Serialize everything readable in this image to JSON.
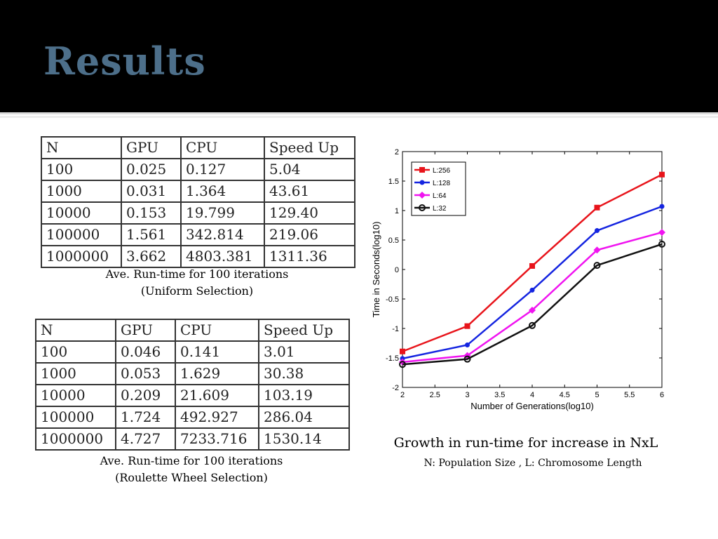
{
  "slide": {
    "title": "Results",
    "header_bg": "#000000",
    "title_color": "#4d6f8a"
  },
  "table_uniform": {
    "headers": [
      "N",
      "GPU",
      "CPU",
      "Speed Up"
    ],
    "rows": [
      [
        "100",
        "0.025",
        "0.127",
        "5.04"
      ],
      [
        "1000",
        "0.031",
        "1.364",
        "43.61"
      ],
      [
        "10000",
        "0.153",
        "19.799",
        "129.40"
      ],
      [
        "100000",
        "1.561",
        "342.814",
        "219.06"
      ],
      [
        "1000000",
        "3.662",
        "4803.381",
        "1311.36"
      ]
    ],
    "caption_line1": "Ave. Run-time for 100 iterations",
    "caption_line2": "(Uniform Selection)"
  },
  "table_roulette": {
    "headers": [
      "N",
      "GPU",
      "CPU",
      "Speed Up"
    ],
    "rows": [
      [
        "100",
        "0.046",
        "0.141",
        "3.01"
      ],
      [
        "1000",
        "0.053",
        "1.629",
        "30.38"
      ],
      [
        "10000",
        "0.209",
        "21.609",
        "103.19"
      ],
      [
        "100000",
        "1.724",
        "492.927",
        "286.04"
      ],
      [
        "1000000",
        "4.727",
        "7233.716",
        "1530.14"
      ]
    ],
    "caption_line1": "Ave. Run-time for 100 iterations",
    "caption_line2": "(Roulette Wheel Selection)"
  },
  "chart_caption": {
    "title": "Growth in run-time for increase in NxL",
    "subtitle": "N: Population Size , L: Chromosome Length"
  },
  "chart_data": {
    "type": "line",
    "xlabel": "Number of Generations(log10)",
    "ylabel": "Time in Seconds(log10)",
    "xlim": [
      2,
      6
    ],
    "ylim": [
      -2,
      2
    ],
    "xticks": [
      "2",
      "2.5",
      "3",
      "3.5",
      "4",
      "4.5",
      "5",
      "5.5",
      "6"
    ],
    "yticks": [
      "-2",
      "-1.5",
      "-1",
      "-0.5",
      "0",
      "0.5",
      "1",
      "1.5",
      "2"
    ],
    "grid": false,
    "legend_position": "top-left",
    "x": [
      2,
      3,
      4,
      5,
      6
    ],
    "series": [
      {
        "name": "L:256",
        "color": "#e8141b",
        "marker": "square",
        "values": [
          -1.39,
          -0.96,
          0.06,
          1.05,
          1.61
        ]
      },
      {
        "name": "L:128",
        "color": "#1424e0",
        "marker": "dot",
        "values": [
          -1.51,
          -1.28,
          -0.35,
          0.66,
          1.07
        ]
      },
      {
        "name": "L:64",
        "color": "#f014f0",
        "marker": "diamond",
        "values": [
          -1.57,
          -1.46,
          -0.69,
          0.33,
          0.63
        ]
      },
      {
        "name": "L:32",
        "color": "#111111",
        "marker": "circle",
        "values": [
          -1.61,
          -1.52,
          -0.95,
          0.07,
          0.43
        ]
      }
    ]
  }
}
